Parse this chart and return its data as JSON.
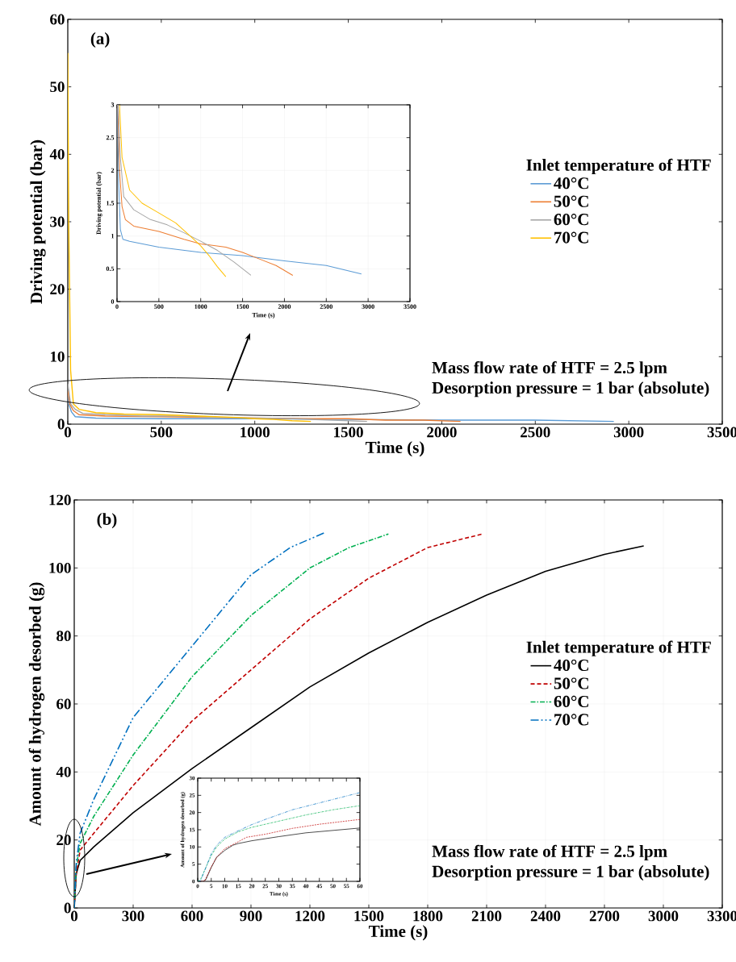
{
  "chart_data": [
    {
      "type": "line",
      "xlabel": "Time (s)",
      "ylabel": "Driving potential (bar)",
      "legend_title": "Inlet temperature of HTF",
      "legend": "right",
      "grid": false,
      "annotations": [
        "(a)",
        "Mass flow rate of HTF = 2.5 lpm",
        "Desorption pressure = 1 bar (absolute)"
      ],
      "xlim": [
        0,
        3500
      ],
      "ylim": [
        0,
        60
      ],
      "xticks": [
        0,
        500,
        1000,
        1500,
        2000,
        2500,
        3000,
        3500
      ],
      "yticks": [
        0,
        10,
        20,
        30,
        40,
        50,
        60
      ],
      "series": [
        {
          "name": "40°C",
          "color": "#5b9bd5",
          "x": [
            0,
            5,
            20,
            40,
            150,
            500,
            1000,
            1500,
            2000,
            2500,
            2920
          ],
          "values": [
            5,
            3,
            1.8,
            1.1,
            0.9,
            0.8,
            0.8,
            0.7,
            0.6,
            0.6,
            0.4
          ]
        },
        {
          "name": "50°C",
          "color": "#ed7d31",
          "x": [
            0,
            10,
            30,
            60,
            200,
            500,
            800,
            1000,
            1300,
            1500,
            1700,
            1900,
            2100
          ],
          "values": [
            5,
            3,
            2,
            1.4,
            1.2,
            1.1,
            1,
            0.9,
            0.8,
            0.8,
            0.6,
            0.6,
            0.4
          ]
        },
        {
          "name": "60°C",
          "color": "#a5a5a5",
          "x": [
            0,
            15,
            40,
            80,
            200,
            400,
            600,
            800,
            1000,
            1200,
            1400,
            1600
          ],
          "values": [
            6,
            3,
            2.2,
            1.6,
            1.4,
            1.2,
            1.2,
            1,
            0.9,
            0.8,
            0.6,
            0.4
          ]
        },
        {
          "name": "70°C",
          "color": "#ffc000",
          "x": [
            0,
            5,
            15,
            30,
            60,
            150,
            300,
            500,
            700,
            900,
            1000,
            1100,
            1200,
            1300
          ],
          "values": [
            55,
            30,
            8,
            3,
            2.2,
            1.7,
            1.5,
            1.4,
            1.2,
            1,
            0.8,
            0.7,
            0.5,
            0.4
          ]
        }
      ]
    },
    {
      "type": "line",
      "xlabel": "Time (s)",
      "ylabel": "Driving potential (bar)",
      "grid": true,
      "xlim": [
        0,
        3500
      ],
      "ylim": [
        0,
        3
      ],
      "xticks": [
        0,
        500,
        1000,
        1500,
        2000,
        2500,
        3000,
        3500
      ],
      "yticks": [
        0,
        0.5,
        1,
        1.5,
        2,
        2.5,
        3
      ],
      "series": [
        {
          "color": "#5b9bd5",
          "x": [
            5,
            20,
            40,
            70,
            150,
            500,
            1000,
            1500,
            2000,
            2500,
            2920
          ],
          "values": [
            3,
            1.8,
            1.1,
            0.95,
            0.92,
            0.83,
            0.75,
            0.7,
            0.62,
            0.55,
            0.42
          ]
        },
        {
          "color": "#ed7d31",
          "x": [
            10,
            30,
            60,
            100,
            200,
            500,
            800,
            1000,
            1300,
            1500,
            1700,
            1900,
            2100
          ],
          "values": [
            3,
            2,
            1.45,
            1.25,
            1.15,
            1.07,
            0.95,
            0.88,
            0.83,
            0.75,
            0.65,
            0.55,
            0.4
          ]
        },
        {
          "color": "#a5a5a5",
          "x": [
            15,
            40,
            80,
            200,
            400,
            600,
            800,
            1000,
            1200,
            1400,
            1600
          ],
          "values": [
            3,
            2.2,
            1.6,
            1.4,
            1.25,
            1.17,
            1.05,
            0.92,
            0.78,
            0.6,
            0.4
          ]
        },
        {
          "color": "#ffc000",
          "x": [
            30,
            60,
            150,
            300,
            500,
            700,
            900,
            1000,
            1100,
            1200,
            1300
          ],
          "values": [
            3,
            2.2,
            1.7,
            1.5,
            1.35,
            1.2,
            0.97,
            0.85,
            0.7,
            0.53,
            0.38
          ]
        }
      ]
    },
    {
      "type": "line",
      "xlabel": "Time (s)",
      "ylabel": "Amount of hydrogen desorbed (g)",
      "legend_title": "Inlet temperature of HTF",
      "legend": "right",
      "grid": true,
      "annotations": [
        "(b)",
        "Mass flow rate of HTF = 2.5 lpm",
        "Desorption pressure = 1 bar (absolute)"
      ],
      "xlim": [
        0,
        3300
      ],
      "ylim": [
        0,
        120
      ],
      "xticks": [
        0,
        300,
        600,
        900,
        1200,
        1500,
        1800,
        2100,
        2400,
        2700,
        3000,
        3300
      ],
      "yticks": [
        0,
        20,
        40,
        60,
        80,
        100,
        120
      ],
      "series": [
        {
          "name": "40°C",
          "color": "#000000",
          "line_style": "solid",
          "x": [
            0,
            10,
            30,
            100,
            300,
            600,
            900,
            1200,
            1500,
            1800,
            2100,
            2400,
            2700,
            2900
          ],
          "values": [
            0,
            10,
            14,
            18,
            28,
            41,
            53,
            65,
            75,
            84,
            92,
            99,
            104,
            106.5
          ]
        },
        {
          "name": "50°C",
          "color": "#c00000",
          "line_style": "dashed",
          "x": [
            0,
            10,
            30,
            100,
            300,
            600,
            900,
            1200,
            1500,
            1800,
            2080
          ],
          "values": [
            0,
            10,
            17,
            22,
            36,
            55,
            70,
            85,
            97,
            106,
            110
          ]
        },
        {
          "name": "60°C",
          "color": "#00b050",
          "line_style": "dashdot",
          "x": [
            0,
            10,
            30,
            100,
            300,
            600,
            900,
            1200,
            1400,
            1600
          ],
          "values": [
            0,
            12,
            19,
            27,
            45,
            68,
            86,
            100,
            106,
            110
          ]
        },
        {
          "name": "70°C",
          "color": "#0070c0",
          "line_style": "dashdotdot",
          "x": [
            0,
            10,
            30,
            100,
            300,
            600,
            900,
            1100,
            1280
          ],
          "values": [
            0,
            13,
            22,
            32,
            56,
            77,
            98,
            106,
            110.5
          ]
        }
      ]
    },
    {
      "type": "line",
      "xlabel": "Time (s)",
      "ylabel": "Amount of hydrogen desorbed (g)",
      "grid": false,
      "xlim": [
        0,
        60
      ],
      "ylim": [
        0,
        30
      ],
      "xticks": [
        0,
        5,
        10,
        15,
        20,
        25,
        30,
        35,
        40,
        45,
        50,
        55,
        60
      ],
      "yticks": [
        0,
        5,
        10,
        15,
        20,
        25,
        30
      ],
      "series": [
        {
          "color": "#000000",
          "line_style": "solid",
          "x": [
            0,
            2,
            3,
            5,
            7,
            10,
            13,
            15,
            20,
            30,
            40,
            50,
            60
          ],
          "values": [
            0,
            0,
            0.5,
            4,
            7,
            9,
            10.5,
            11,
            11.8,
            13,
            14.1,
            14.8,
            15.5
          ]
        },
        {
          "color": "#c00000",
          "line_style": "dashed",
          "x": [
            0,
            2.5,
            5,
            7,
            10,
            15,
            18,
            25,
            35,
            45,
            60
          ],
          "values": [
            0,
            0,
            4.2,
            7,
            9.5,
            11.5,
            12.8,
            13.7,
            15.4,
            16.6,
            18
          ]
        },
        {
          "color": "#00b050",
          "line_style": "dashdot",
          "x": [
            0,
            1,
            3,
            5,
            7,
            10,
            15,
            20,
            30,
            40,
            50,
            60
          ],
          "values": [
            0,
            0.5,
            4,
            7.5,
            10,
            12.3,
            14.4,
            15.7,
            17.5,
            19.3,
            20.8,
            22
          ]
        },
        {
          "color": "#0070c0",
          "line_style": "dashdotdot",
          "x": [
            0,
            1,
            3,
            5,
            7,
            10,
            15,
            20,
            25,
            35,
            45,
            60
          ],
          "values": [
            0,
            0,
            4,
            8,
            10.5,
            12.8,
            14.7,
            16.5,
            18,
            20.8,
            22.8,
            25.8
          ]
        }
      ]
    }
  ]
}
